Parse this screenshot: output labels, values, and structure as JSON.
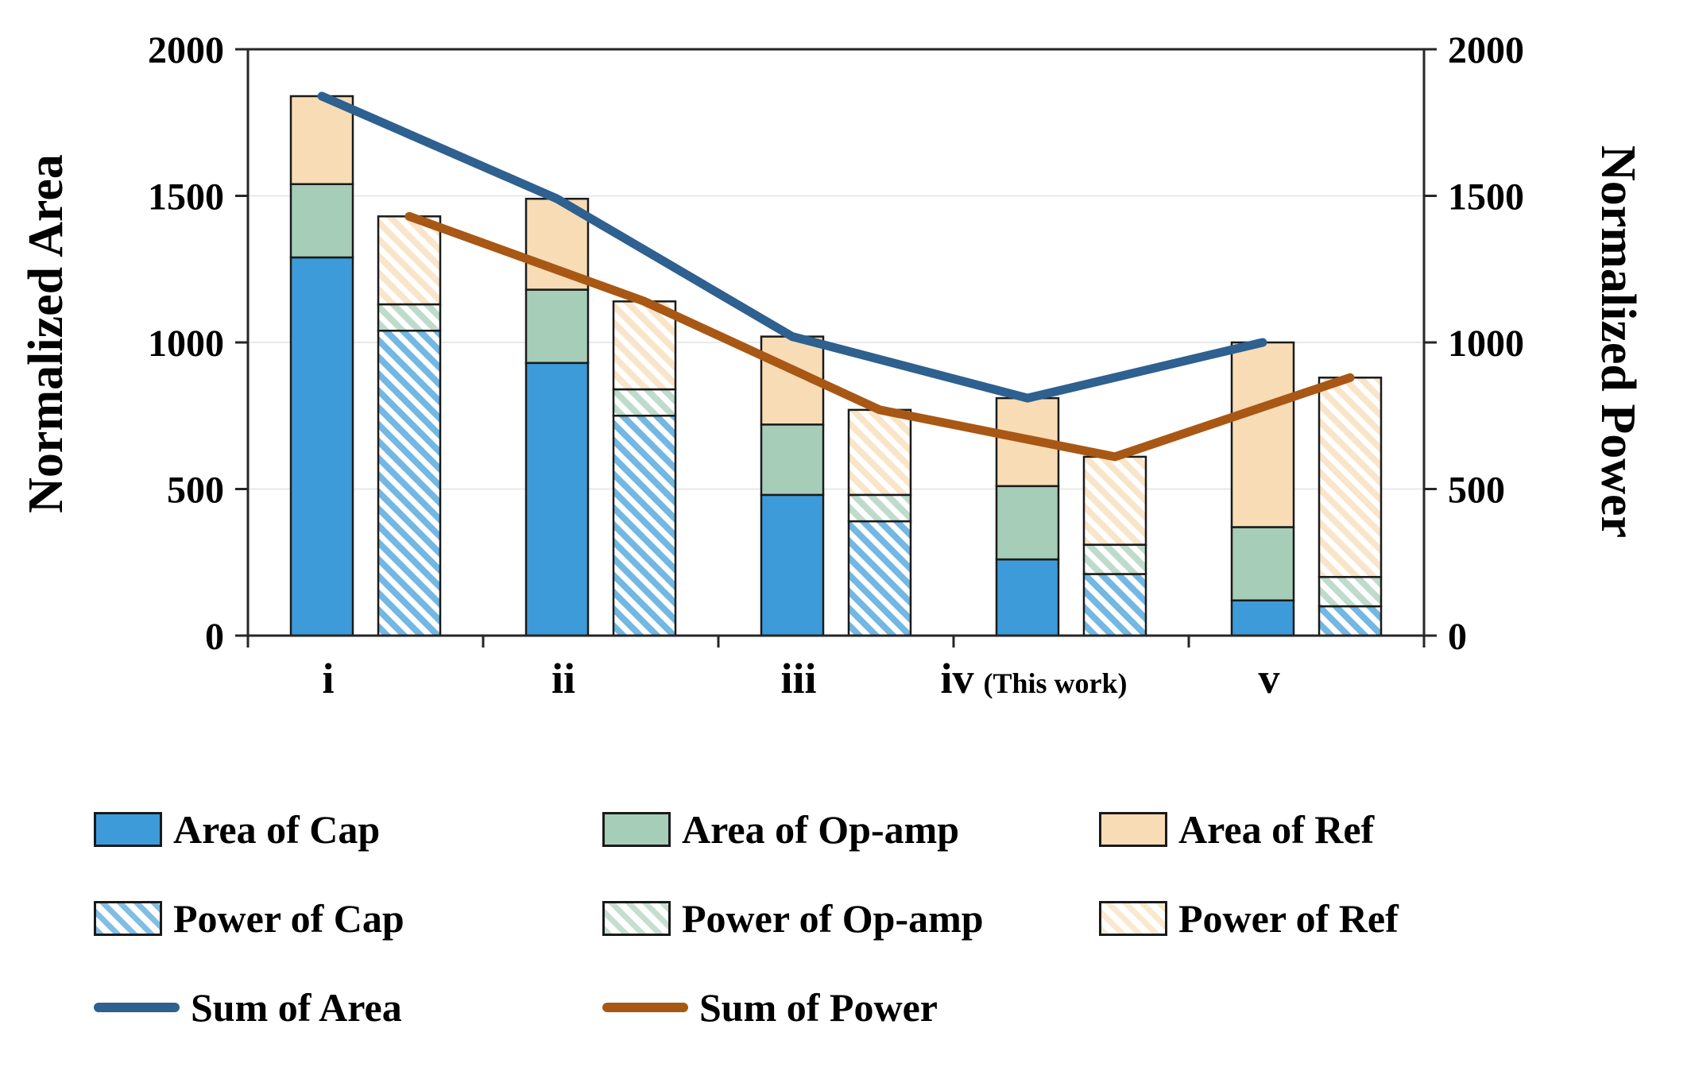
{
  "chart_data": {
    "type": "bar",
    "subtype": "stacked-bars-with-line-overlay",
    "categories": [
      "i",
      "ii",
      "iii",
      "iv",
      "v"
    ],
    "category_note": {
      "index": 3,
      "text": "(This work)"
    },
    "left_axis": {
      "label": "Normalized Area",
      "min": 0,
      "max": 2000,
      "ticks": [
        0,
        500,
        1000,
        1500,
        2000
      ]
    },
    "right_axis": {
      "label": "Normalized Power",
      "min": 0,
      "max": 2000,
      "ticks": [
        0,
        500,
        1000,
        1500,
        2000
      ]
    },
    "bar_series": [
      {
        "name": "Area of Cap",
        "group": "area",
        "style": "solid",
        "color": "#3D9BD9",
        "values": [
          1290,
          930,
          480,
          260,
          120
        ]
      },
      {
        "name": "Area of Op-amp",
        "group": "area",
        "style": "solid",
        "color": "#A6CDB7",
        "values": [
          250,
          250,
          240,
          250,
          250
        ]
      },
      {
        "name": "Area of Ref",
        "group": "area",
        "style": "solid",
        "color": "#F7DCB5",
        "values": [
          300,
          310,
          300,
          300,
          630
        ]
      },
      {
        "name": "Power of Cap",
        "group": "power",
        "style": "hatched",
        "color": "#3D9BD9",
        "values": [
          1040,
          750,
          390,
          210,
          100
        ]
      },
      {
        "name": "Power of Op-amp",
        "group": "power",
        "style": "hatched",
        "color": "#A6CDB7",
        "values": [
          90,
          90,
          90,
          100,
          100
        ]
      },
      {
        "name": "Power of Ref",
        "group": "power",
        "style": "hatched",
        "color": "#F7DCB5",
        "values": [
          300,
          300,
          290,
          300,
          680
        ]
      }
    ],
    "line_series": [
      {
        "name": "Sum of Area",
        "color": "#2E6090",
        "anchor": "area",
        "values": [
          1840,
          1490,
          1020,
          810,
          1000
        ]
      },
      {
        "name": "Sum of Power",
        "color": "#A85814",
        "anchor": "power",
        "values": [
          1430,
          1140,
          770,
          610,
          880
        ]
      }
    ],
    "layout": {
      "legend_position": "bottom",
      "grid": "light-horizontal",
      "plot_border": true
    }
  }
}
